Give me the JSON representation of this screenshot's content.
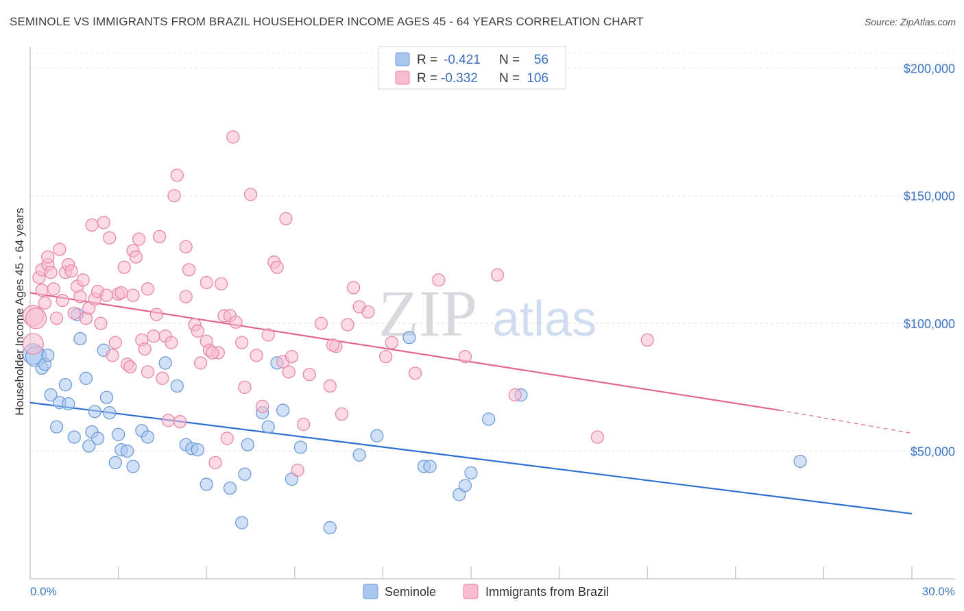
{
  "title": "SEMINOLE VS IMMIGRANTS FROM BRAZIL HOUSEHOLDER INCOME AGES 45 - 64 YEARS CORRELATION CHART",
  "source": "Source: ZipAtlas.com",
  "watermark": {
    "zip": "ZIP",
    "atlas": "atlas"
  },
  "stats": [
    {
      "r_label": "R =",
      "r_value": "-0.421",
      "n_label": "N =",
      "n_value": "56",
      "color": "#a9c6ee",
      "stroke": "#6f9bd8"
    },
    {
      "r_label": "R =",
      "r_value": "-0.332",
      "n_label": "N =",
      "n_value": "106",
      "color": "#f7bcd0",
      "stroke": "#e886a8"
    }
  ],
  "colors": {
    "blue": "#6f9bd8",
    "blue_fill": "#a9c6ee",
    "pink": "#e886a8",
    "pink_fill": "#f7bcd0",
    "blue_line": "#2e6fd0",
    "pink_line": "#e2658f",
    "tick_text": "#3a74c6"
  },
  "chart_data": {
    "type": "scatter",
    "title": "SEMINOLE VS IMMIGRANTS FROM BRAZIL HOUSEHOLDER INCOME AGES 45 - 64 YEARS CORRELATION CHART",
    "xlabel": "",
    "ylabel": "Householder Income Ages 45 - 64 years",
    "xlim": [
      0,
      30
    ],
    "ylim": [
      0,
      210000
    ],
    "x_tick_labels": [
      "0.0%",
      "30.0%"
    ],
    "y_ticks": [
      50000,
      100000,
      150000,
      200000
    ],
    "y_tick_labels": [
      "$50,000",
      "$100,000",
      "$150,000",
      "$200,000"
    ],
    "grid": true,
    "legend_position": "bottom-center",
    "series": [
      {
        "name": "Seminole",
        "color": "#6f9bd8",
        "trend": {
          "x": [
            0,
            30
          ],
          "y": [
            69000,
            25500
          ]
        },
        "points": [
          [
            0.1,
            88000
          ],
          [
            0.2,
            87000
          ],
          [
            0.4,
            82500
          ],
          [
            0.5,
            84000
          ],
          [
            0.6,
            87500
          ],
          [
            0.7,
            72000
          ],
          [
            0.9,
            59500
          ],
          [
            1.0,
            69000
          ],
          [
            1.2,
            76000
          ],
          [
            1.3,
            68500
          ],
          [
            1.5,
            55500
          ],
          [
            1.6,
            103500
          ],
          [
            1.7,
            94000
          ],
          [
            1.9,
            78500
          ],
          [
            2.0,
            52000
          ],
          [
            2.1,
            57500
          ],
          [
            2.2,
            65500
          ],
          [
            2.3,
            55000
          ],
          [
            2.5,
            89500
          ],
          [
            2.6,
            71000
          ],
          [
            2.7,
            65000
          ],
          [
            2.9,
            45500
          ],
          [
            3.0,
            56500
          ],
          [
            3.1,
            50500
          ],
          [
            3.3,
            50000
          ],
          [
            3.5,
            44000
          ],
          [
            3.8,
            58000
          ],
          [
            4.0,
            55500
          ],
          [
            4.6,
            84500
          ],
          [
            5.0,
            75500
          ],
          [
            5.3,
            52500
          ],
          [
            5.5,
            51000
          ],
          [
            5.7,
            50500
          ],
          [
            6.0,
            37000
          ],
          [
            6.8,
            35500
          ],
          [
            7.2,
            22000
          ],
          [
            7.3,
            41000
          ],
          [
            7.4,
            52500
          ],
          [
            7.9,
            65000
          ],
          [
            8.1,
            59500
          ],
          [
            8.4,
            84500
          ],
          [
            8.6,
            66000
          ],
          [
            8.9,
            39000
          ],
          [
            9.2,
            51500
          ],
          [
            10.2,
            20000
          ],
          [
            11.2,
            48500
          ],
          [
            11.8,
            56000
          ],
          [
            12.9,
            94500
          ],
          [
            13.4,
            44000
          ],
          [
            13.6,
            44000
          ],
          [
            14.6,
            33000
          ],
          [
            14.8,
            36500
          ],
          [
            15.0,
            41500
          ],
          [
            15.6,
            62500
          ],
          [
            16.7,
            72000
          ],
          [
            26.2,
            46000
          ]
        ]
      },
      {
        "name": "Immigrants from Brazil",
        "color": "#e886a8",
        "trend": {
          "x": [
            0,
            25.5
          ],
          "y": [
            112000,
            66000
          ]
        },
        "trend_dashed": {
          "x": [
            25.5,
            30
          ],
          "y": [
            66000,
            57000
          ]
        },
        "points": [
          [
            0.1,
            103000
          ],
          [
            0.1,
            92000
          ],
          [
            0.2,
            102000
          ],
          [
            0.3,
            118000
          ],
          [
            0.4,
            113000
          ],
          [
            0.4,
            121000
          ],
          [
            0.5,
            108000
          ],
          [
            0.6,
            123000
          ],
          [
            0.6,
            126000
          ],
          [
            0.7,
            120000
          ],
          [
            0.8,
            113500
          ],
          [
            0.9,
            102000
          ],
          [
            1.0,
            129000
          ],
          [
            1.1,
            109000
          ],
          [
            1.2,
            120000
          ],
          [
            1.3,
            123000
          ],
          [
            1.4,
            120500
          ],
          [
            1.5,
            104000
          ],
          [
            1.6,
            114500
          ],
          [
            1.7,
            110500
          ],
          [
            1.8,
            117000
          ],
          [
            1.9,
            102000
          ],
          [
            2.0,
            106000
          ],
          [
            2.1,
            138500
          ],
          [
            2.2,
            109500
          ],
          [
            2.3,
            112500
          ],
          [
            2.4,
            100000
          ],
          [
            2.5,
            139500
          ],
          [
            2.6,
            111000
          ],
          [
            2.7,
            133500
          ],
          [
            2.8,
            87500
          ],
          [
            2.9,
            92500
          ],
          [
            3.0,
            111500
          ],
          [
            3.1,
            112000
          ],
          [
            3.2,
            122000
          ],
          [
            3.3,
            84000
          ],
          [
            3.4,
            83000
          ],
          [
            3.5,
            111000
          ],
          [
            3.5,
            128500
          ],
          [
            3.6,
            126000
          ],
          [
            3.7,
            133000
          ],
          [
            3.8,
            93500
          ],
          [
            4.0,
            113500
          ],
          [
            4.0,
            81000
          ],
          [
            4.2,
            95000
          ],
          [
            4.3,
            103500
          ],
          [
            4.4,
            134000
          ],
          [
            4.5,
            78500
          ],
          [
            4.6,
            95000
          ],
          [
            4.7,
            62000
          ],
          [
            4.8,
            92500
          ],
          [
            4.9,
            150000
          ],
          [
            5.0,
            158000
          ],
          [
            5.1,
            61500
          ],
          [
            5.3,
            130000
          ],
          [
            5.3,
            110500
          ],
          [
            5.4,
            121000
          ],
          [
            5.6,
            99500
          ],
          [
            5.7,
            97000
          ],
          [
            5.8,
            84500
          ],
          [
            6.0,
            93000
          ],
          [
            6.0,
            116000
          ],
          [
            6.1,
            89500
          ],
          [
            6.3,
            45500
          ],
          [
            6.4,
            88500
          ],
          [
            6.5,
            115500
          ],
          [
            6.6,
            103000
          ],
          [
            6.7,
            55000
          ],
          [
            6.8,
            103000
          ],
          [
            6.9,
            173000
          ],
          [
            7.0,
            100500
          ],
          [
            7.2,
            92500
          ],
          [
            7.3,
            75000
          ],
          [
            7.5,
            150500
          ],
          [
            7.7,
            87500
          ],
          [
            7.9,
            67500
          ],
          [
            8.1,
            95500
          ],
          [
            8.3,
            124000
          ],
          [
            8.4,
            122000
          ],
          [
            8.6,
            85000
          ],
          [
            8.7,
            141000
          ],
          [
            8.8,
            81000
          ],
          [
            8.9,
            87000
          ],
          [
            9.1,
            42500
          ],
          [
            9.3,
            60500
          ],
          [
            9.5,
            80000
          ],
          [
            9.9,
            100000
          ],
          [
            10.2,
            75500
          ],
          [
            10.4,
            91000
          ],
          [
            10.6,
            64500
          ],
          [
            10.8,
            99500
          ],
          [
            11.0,
            114000
          ],
          [
            11.2,
            106500
          ],
          [
            11.5,
            104500
          ],
          [
            12.1,
            87000
          ],
          [
            12.3,
            92500
          ],
          [
            13.1,
            80500
          ],
          [
            13.9,
            117000
          ],
          [
            14.8,
            87000
          ],
          [
            15.9,
            119000
          ],
          [
            16.5,
            72000
          ],
          [
            19.3,
            55500
          ],
          [
            21.0,
            93500
          ],
          [
            10.3,
            91500
          ],
          [
            6.2,
            88500
          ],
          [
            3.9,
            90000
          ]
        ]
      }
    ]
  },
  "legend": [
    {
      "label": "Seminole"
    },
    {
      "label": "Immigrants from Brazil"
    }
  ]
}
